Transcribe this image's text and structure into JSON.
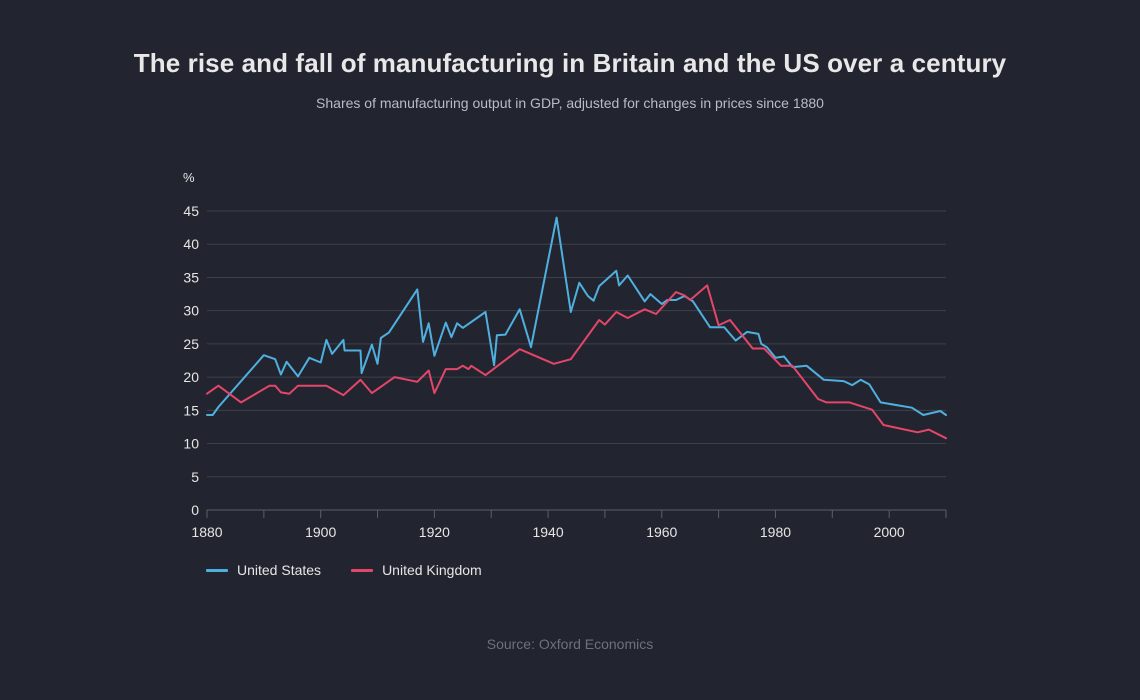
{
  "title": "The rise and fall of manufacturing in Britain and the US over a century",
  "subtitle": "Shares of manufacturing output in GDP, adjusted for changes in prices since 1880",
  "source": "Source: Oxford Economics",
  "chart_data": {
    "type": "line",
    "ylabel": "%",
    "xlabel": "",
    "xlim": [
      1880,
      2010
    ],
    "ylim": [
      0,
      45
    ],
    "y_ticks": [
      "0",
      "5",
      "10",
      "15",
      "20",
      "25",
      "30",
      "35",
      "40",
      "45"
    ],
    "x_ticks": [
      "1880",
      "1900",
      "1920",
      "1940",
      "1960",
      "1980",
      "2000"
    ],
    "grid": true,
    "legend_position": "bottom-left",
    "series": [
      {
        "name": "United States",
        "color": "#4fb0e0",
        "points": [
          [
            1880,
            14.3
          ],
          [
            1881,
            14.3
          ],
          [
            1882,
            15.5
          ],
          [
            1890,
            23.3
          ],
          [
            1892,
            22.7
          ],
          [
            1893,
            20.4
          ],
          [
            1894,
            22.3
          ],
          [
            1896,
            20.1
          ],
          [
            1898,
            22.9
          ],
          [
            1900,
            22.2
          ],
          [
            1901,
            25.6
          ],
          [
            1902,
            23.5
          ],
          [
            1904,
            25.6
          ],
          [
            1904.2,
            24.0
          ],
          [
            1907,
            24.0
          ],
          [
            1907.2,
            20.6
          ],
          [
            1909,
            24.9
          ],
          [
            1910,
            22.0
          ],
          [
            1910.6,
            25.9
          ],
          [
            1912,
            26.7
          ],
          [
            1917,
            33.2
          ],
          [
            1918,
            25.3
          ],
          [
            1919,
            28.1
          ],
          [
            1920,
            23.2
          ],
          [
            1922,
            28.2
          ],
          [
            1923,
            26.0
          ],
          [
            1924,
            28.1
          ],
          [
            1925,
            27.4
          ],
          [
            1929,
            29.8
          ],
          [
            1930.5,
            21.8
          ],
          [
            1931,
            26.3
          ],
          [
            1932.5,
            26.4
          ],
          [
            1935,
            30.2
          ],
          [
            1937,
            24.5
          ],
          [
            1941.5,
            44.0
          ],
          [
            1944,
            29.8
          ],
          [
            1945.5,
            34.2
          ],
          [
            1947,
            32.2
          ],
          [
            1948,
            31.5
          ],
          [
            1949,
            33.7
          ],
          [
            1952,
            36.0
          ],
          [
            1952.5,
            33.8
          ],
          [
            1954,
            35.3
          ],
          [
            1957,
            31.4
          ],
          [
            1958,
            32.5
          ],
          [
            1960,
            31.0
          ],
          [
            1961,
            31.6
          ],
          [
            1962.5,
            31.6
          ],
          [
            1964,
            32.2
          ],
          [
            1965.5,
            31.4
          ],
          [
            1968.5,
            27.5
          ],
          [
            1971,
            27.5
          ],
          [
            1973,
            25.5
          ],
          [
            1975,
            26.8
          ],
          [
            1977,
            26.5
          ],
          [
            1977.5,
            25.0
          ],
          [
            1978.5,
            24.5
          ],
          [
            1980,
            22.9
          ],
          [
            1981.5,
            23.1
          ],
          [
            1983,
            21.5
          ],
          [
            1985.5,
            21.7
          ],
          [
            1988.5,
            19.6
          ],
          [
            1992,
            19.4
          ],
          [
            1993.5,
            18.8
          ],
          [
            1995,
            19.6
          ],
          [
            1996.5,
            18.9
          ],
          [
            1998.5,
            16.2
          ],
          [
            2004,
            15.4
          ],
          [
            2006,
            14.3
          ],
          [
            2009,
            14.9
          ],
          [
            2010,
            14.3
          ]
        ]
      },
      {
        "name": "United Kingdom",
        "color": "#e4466a",
        "points": [
          [
            1880,
            17.5
          ],
          [
            1882,
            18.7
          ],
          [
            1886,
            16.2
          ],
          [
            1891,
            18.7
          ],
          [
            1892,
            18.7
          ],
          [
            1893,
            17.7
          ],
          [
            1894.5,
            17.5
          ],
          [
            1896,
            18.7
          ],
          [
            1901,
            18.7
          ],
          [
            1904,
            17.3
          ],
          [
            1907,
            19.6
          ],
          [
            1909,
            17.6
          ],
          [
            1913,
            20.0
          ],
          [
            1917,
            19.3
          ],
          [
            1919,
            21.0
          ],
          [
            1920,
            17.6
          ],
          [
            1922,
            21.2
          ],
          [
            1924,
            21.2
          ],
          [
            1925,
            21.7
          ],
          [
            1926,
            21.2
          ],
          [
            1926.5,
            21.7
          ],
          [
            1929,
            20.3
          ],
          [
            1935,
            24.2
          ],
          [
            1941,
            22.0
          ],
          [
            1944,
            22.7
          ],
          [
            1949,
            28.6
          ],
          [
            1950,
            27.9
          ],
          [
            1952,
            29.8
          ],
          [
            1954,
            28.9
          ],
          [
            1957,
            30.2
          ],
          [
            1959,
            29.5
          ],
          [
            1962.5,
            32.8
          ],
          [
            1964,
            32.3
          ],
          [
            1965,
            31.6
          ],
          [
            1968,
            33.8
          ],
          [
            1970,
            27.8
          ],
          [
            1972,
            28.6
          ],
          [
            1976,
            24.3
          ],
          [
            1978,
            24.3
          ],
          [
            1981,
            21.7
          ],
          [
            1983,
            21.7
          ],
          [
            1987.5,
            16.7
          ],
          [
            1989,
            16.2
          ],
          [
            1993,
            16.2
          ],
          [
            1997,
            15.1
          ],
          [
            1999,
            12.8
          ],
          [
            2005,
            11.7
          ],
          [
            2007,
            12.1
          ],
          [
            2010,
            10.8
          ]
        ]
      }
    ]
  }
}
